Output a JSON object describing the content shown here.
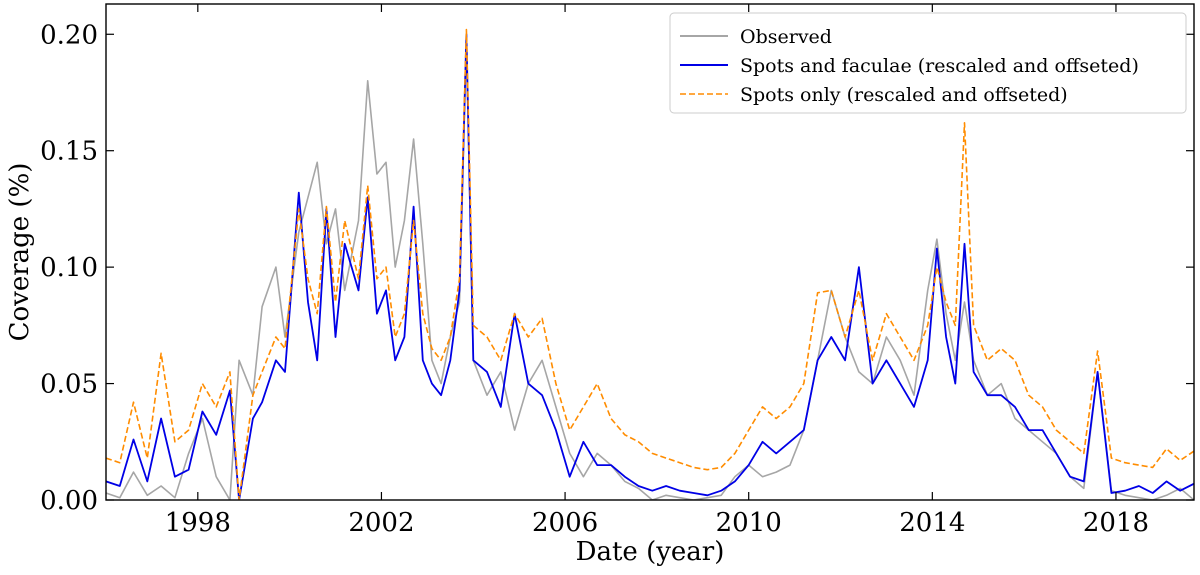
{
  "chart_data": {
    "type": "line",
    "title": "",
    "xlabel": "Date (year)",
    "ylabel": "Coverage (%)",
    "xlim": [
      1996.0,
      2019.7
    ],
    "ylim": [
      0.0,
      0.213
    ],
    "x_ticks": [
      1998,
      2002,
      2006,
      2010,
      2014,
      2018
    ],
    "x_tick_labels": [
      "1998",
      "2002",
      "2006",
      "2010",
      "2014",
      "2018"
    ],
    "y_ticks": [
      0.0,
      0.05,
      0.1,
      0.15,
      0.2
    ],
    "y_tick_labels": [
      "0.00",
      "0.05",
      "0.10",
      "0.15",
      "0.20"
    ],
    "legend_position": "top-right",
    "grid": false,
    "series": [
      {
        "name": "Observed",
        "color": "#a6a6a6",
        "style": "solid",
        "x": [
          1996.0,
          1996.3,
          1996.6,
          1996.9,
          1997.2,
          1997.5,
          1997.8,
          1998.1,
          1998.4,
          1998.7,
          1998.9,
          1999.2,
          1999.4,
          1999.7,
          1999.9,
          2000.2,
          2000.4,
          2000.6,
          2000.8,
          2001.0,
          2001.2,
          2001.5,
          2001.7,
          2001.9,
          2002.1,
          2002.3,
          2002.5,
          2002.7,
          2002.9,
          2003.1,
          2003.3,
          2003.5,
          2003.7,
          2003.85,
          2004.0,
          2004.3,
          2004.6,
          2004.9,
          2005.2,
          2005.5,
          2005.8,
          2006.1,
          2006.4,
          2006.7,
          2007.0,
          2007.3,
          2007.6,
          2007.9,
          2008.2,
          2008.5,
          2008.8,
          2009.1,
          2009.4,
          2009.7,
          2010.0,
          2010.3,
          2010.6,
          2010.9,
          2011.2,
          2011.5,
          2011.8,
          2012.1,
          2012.4,
          2012.7,
          2013.0,
          2013.3,
          2013.6,
          2013.9,
          2014.1,
          2014.3,
          2014.5,
          2014.7,
          2014.9,
          2015.2,
          2015.5,
          2015.8,
          2016.1,
          2016.4,
          2016.7,
          2017.0,
          2017.3,
          2017.6,
          2017.9,
          2018.2,
          2018.5,
          2018.8,
          2019.1,
          2019.4,
          2019.7
        ],
        "y": [
          0.003,
          0.001,
          0.012,
          0.002,
          0.006,
          0.001,
          0.02,
          0.035,
          0.01,
          0.0,
          0.06,
          0.045,
          0.083,
          0.1,
          0.07,
          0.115,
          0.13,
          0.145,
          0.11,
          0.125,
          0.09,
          0.12,
          0.18,
          0.14,
          0.145,
          0.1,
          0.12,
          0.155,
          0.11,
          0.06,
          0.05,
          0.07,
          0.085,
          0.197,
          0.06,
          0.045,
          0.055,
          0.03,
          0.05,
          0.06,
          0.04,
          0.02,
          0.01,
          0.02,
          0.015,
          0.008,
          0.005,
          0.0,
          0.002,
          0.001,
          0.0,
          0.001,
          0.002,
          0.01,
          0.015,
          0.01,
          0.012,
          0.015,
          0.03,
          0.06,
          0.09,
          0.07,
          0.055,
          0.05,
          0.07,
          0.06,
          0.045,
          0.09,
          0.112,
          0.08,
          0.06,
          0.085,
          0.06,
          0.045,
          0.05,
          0.035,
          0.03,
          0.025,
          0.02,
          0.01,
          0.005,
          0.055,
          0.004,
          0.002,
          0.001,
          0.0,
          0.002,
          0.005,
          0.0
        ]
      },
      {
        "name": "Spots and faculae (rescaled and offseted)",
        "color": "#0000e6",
        "style": "solid",
        "x": [
          1996.0,
          1996.3,
          1996.6,
          1996.9,
          1997.2,
          1997.5,
          1997.8,
          1998.1,
          1998.4,
          1998.7,
          1998.9,
          1999.2,
          1999.4,
          1999.7,
          1999.9,
          2000.2,
          2000.4,
          2000.6,
          2000.8,
          2001.0,
          2001.2,
          2001.5,
          2001.7,
          2001.9,
          2002.1,
          2002.3,
          2002.5,
          2002.7,
          2002.9,
          2003.1,
          2003.3,
          2003.5,
          2003.7,
          2003.85,
          2004.0,
          2004.3,
          2004.6,
          2004.9,
          2005.2,
          2005.5,
          2005.8,
          2006.1,
          2006.4,
          2006.7,
          2007.0,
          2007.3,
          2007.6,
          2007.9,
          2008.2,
          2008.5,
          2008.8,
          2009.1,
          2009.4,
          2009.7,
          2010.0,
          2010.3,
          2010.6,
          2010.9,
          2011.2,
          2011.5,
          2011.8,
          2012.1,
          2012.4,
          2012.7,
          2013.0,
          2013.3,
          2013.6,
          2013.9,
          2014.1,
          2014.3,
          2014.5,
          2014.7,
          2014.9,
          2015.2,
          2015.5,
          2015.8,
          2016.1,
          2016.4,
          2016.7,
          2017.0,
          2017.3,
          2017.6,
          2017.9,
          2018.2,
          2018.5,
          2018.8,
          2019.1,
          2019.4,
          2019.7
        ],
        "y": [
          0.008,
          0.006,
          0.026,
          0.008,
          0.035,
          0.01,
          0.013,
          0.038,
          0.028,
          0.047,
          0.0,
          0.035,
          0.042,
          0.06,
          0.055,
          0.132,
          0.085,
          0.06,
          0.125,
          0.07,
          0.11,
          0.09,
          0.13,
          0.08,
          0.09,
          0.06,
          0.07,
          0.126,
          0.06,
          0.05,
          0.045,
          0.06,
          0.09,
          0.2,
          0.06,
          0.055,
          0.04,
          0.08,
          0.05,
          0.045,
          0.03,
          0.01,
          0.025,
          0.015,
          0.015,
          0.01,
          0.006,
          0.004,
          0.006,
          0.004,
          0.003,
          0.002,
          0.004,
          0.008,
          0.015,
          0.025,
          0.02,
          0.025,
          0.03,
          0.06,
          0.07,
          0.06,
          0.1,
          0.05,
          0.06,
          0.05,
          0.04,
          0.06,
          0.108,
          0.07,
          0.05,
          0.11,
          0.055,
          0.045,
          0.045,
          0.04,
          0.03,
          0.03,
          0.02,
          0.01,
          0.008,
          0.055,
          0.003,
          0.004,
          0.006,
          0.003,
          0.008,
          0.004,
          0.007
        ]
      },
      {
        "name": "Spots only (rescaled and offseted)",
        "color": "#ff8c00",
        "style": "dashed",
        "x": [
          1996.0,
          1996.3,
          1996.6,
          1996.9,
          1997.2,
          1997.5,
          1997.8,
          1998.1,
          1998.4,
          1998.7,
          1998.9,
          1999.2,
          1999.4,
          1999.7,
          1999.9,
          2000.2,
          2000.4,
          2000.6,
          2000.8,
          2001.0,
          2001.2,
          2001.5,
          2001.7,
          2001.9,
          2002.1,
          2002.3,
          2002.5,
          2002.7,
          2002.9,
          2003.1,
          2003.3,
          2003.5,
          2003.7,
          2003.85,
          2004.0,
          2004.3,
          2004.6,
          2004.9,
          2005.2,
          2005.5,
          2005.8,
          2006.1,
          2006.4,
          2006.7,
          2007.0,
          2007.3,
          2007.6,
          2007.9,
          2008.2,
          2008.5,
          2008.8,
          2009.1,
          2009.4,
          2009.7,
          2010.0,
          2010.3,
          2010.6,
          2010.9,
          2011.2,
          2011.5,
          2011.8,
          2012.1,
          2012.4,
          2012.7,
          2013.0,
          2013.3,
          2013.6,
          2013.9,
          2014.1,
          2014.3,
          2014.5,
          2014.7,
          2014.9,
          2015.2,
          2015.5,
          2015.8,
          2016.1,
          2016.4,
          2016.7,
          2017.0,
          2017.3,
          2017.6,
          2017.9,
          2018.2,
          2018.5,
          2018.8,
          2019.1,
          2019.4,
          2019.7
        ],
        "y": [
          0.018,
          0.016,
          0.042,
          0.018,
          0.063,
          0.025,
          0.03,
          0.05,
          0.04,
          0.055,
          0.0,
          0.045,
          0.055,
          0.07,
          0.065,
          0.125,
          0.095,
          0.08,
          0.126,
          0.085,
          0.12,
          0.095,
          0.135,
          0.095,
          0.1,
          0.07,
          0.08,
          0.12,
          0.08,
          0.065,
          0.06,
          0.07,
          0.095,
          0.202,
          0.075,
          0.07,
          0.06,
          0.08,
          0.07,
          0.078,
          0.05,
          0.03,
          0.04,
          0.05,
          0.035,
          0.028,
          0.025,
          0.02,
          0.018,
          0.016,
          0.014,
          0.013,
          0.014,
          0.02,
          0.03,
          0.04,
          0.035,
          0.04,
          0.05,
          0.089,
          0.09,
          0.07,
          0.09,
          0.06,
          0.08,
          0.07,
          0.06,
          0.075,
          0.1,
          0.085,
          0.075,
          0.162,
          0.075,
          0.06,
          0.065,
          0.06,
          0.045,
          0.04,
          0.03,
          0.025,
          0.02,
          0.064,
          0.018,
          0.016,
          0.015,
          0.014,
          0.022,
          0.017,
          0.021
        ]
      }
    ]
  }
}
